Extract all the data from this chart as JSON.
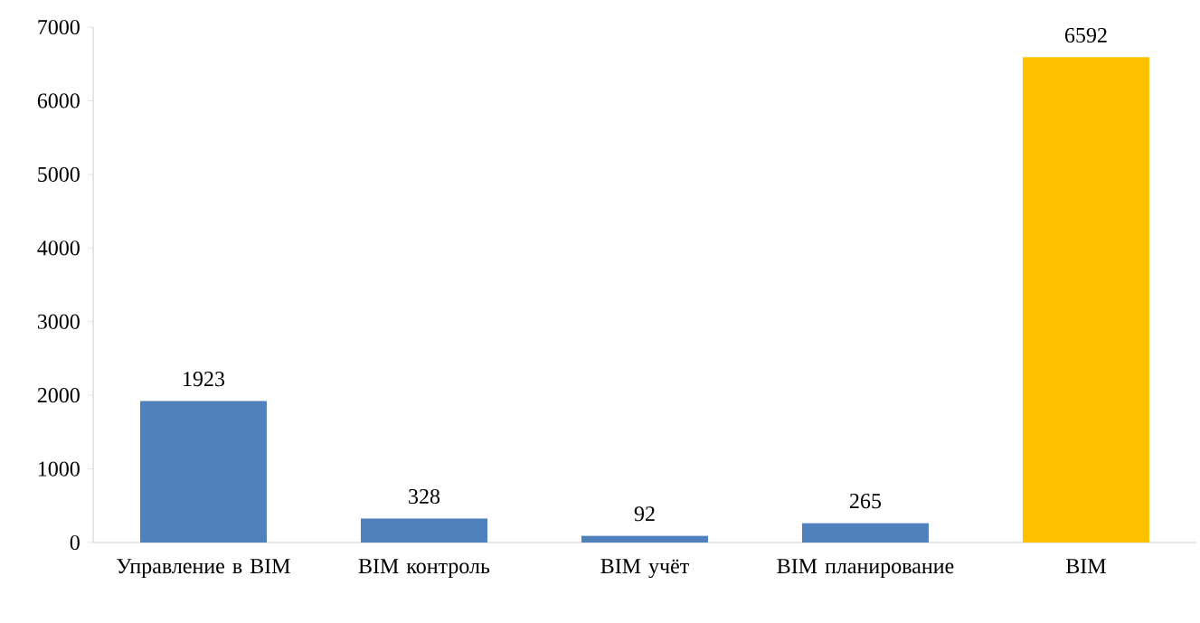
{
  "chart_data": {
    "type": "bar",
    "categories": [
      "Управление в BIM",
      "BIM  контроль",
      "BIM учёт",
      "BIM планирование",
      "BIM"
    ],
    "values": [
      1923,
      328,
      92,
      265,
      6592
    ],
    "colors": [
      "#4f81bd",
      "#4f81bd",
      "#4f81bd",
      "#4f81bd",
      "#ffc000"
    ],
    "ylim": [
      0,
      7000
    ],
    "yticks": [
      0,
      1000,
      2000,
      3000,
      4000,
      5000,
      6000,
      7000
    ],
    "data_labels": true
  }
}
